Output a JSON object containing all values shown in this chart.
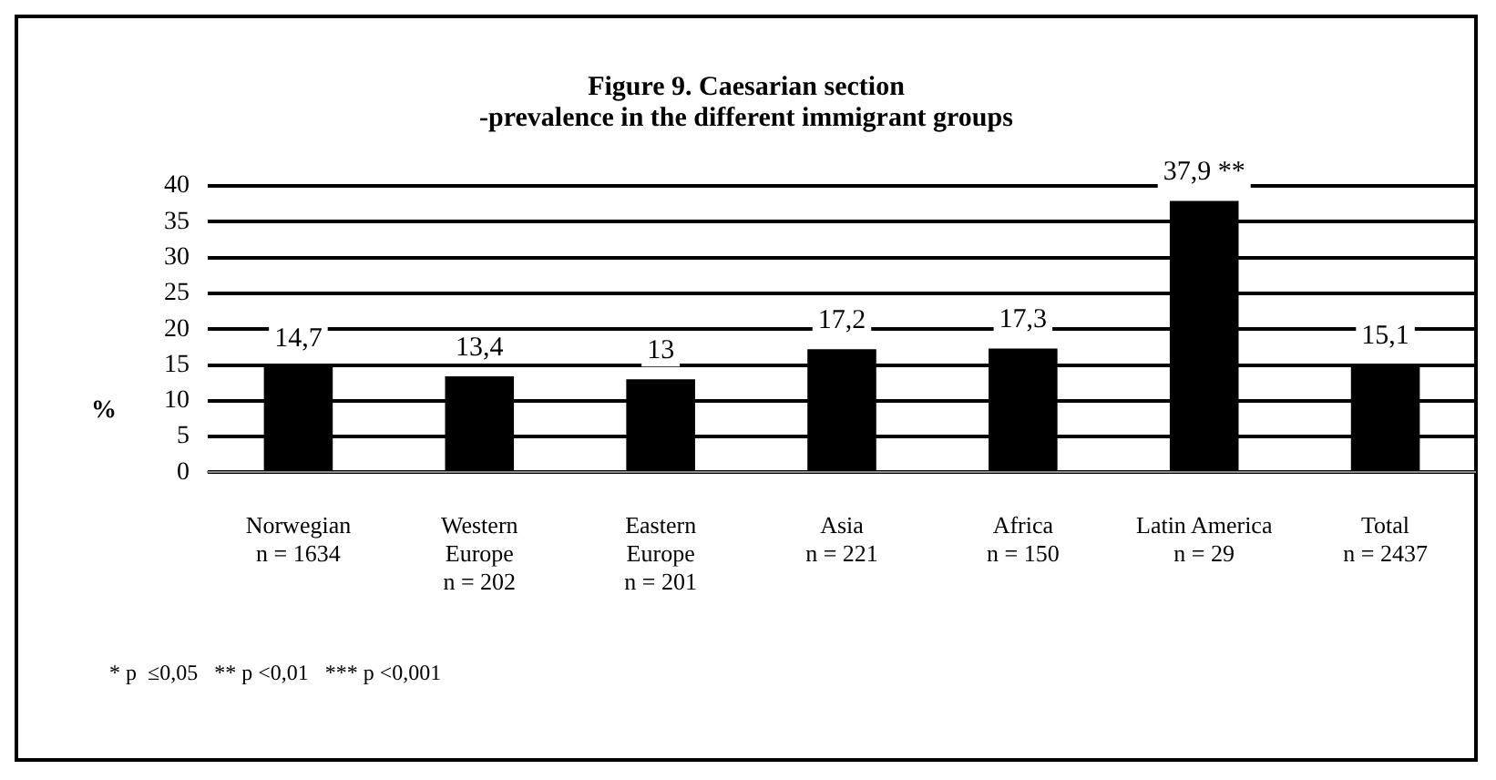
{
  "chart_data": {
    "type": "bar",
    "title": "Figure 9. Caesarian section\n-prevalence in the different immigrant groups",
    "ylabel": "%",
    "categories": [
      "Norwegian\nn = 1634",
      "Western\nEurope\nn = 202",
      "Eastern\nEurope\nn = 201",
      "Asia\nn = 221",
      "Africa\nn = 150",
      "Latin America\nn = 29",
      "Total\nn = 2437"
    ],
    "values": [
      14.7,
      13.4,
      13,
      17.2,
      17.3,
      37.9,
      15.1
    ],
    "value_labels": [
      "14,7",
      "13,4",
      "13",
      "17,2",
      "17,3",
      "37,9 **",
      "15,1"
    ],
    "color": "#000000",
    "ylim": [
      0,
      40
    ],
    "yticks": [
      0,
      5,
      10,
      15,
      20,
      25,
      30,
      35,
      40
    ],
    "grid": "y",
    "legend": false,
    "annotations": [
      "* p  ≤0,05   ** p <0,01   *** p <0,001"
    ]
  }
}
